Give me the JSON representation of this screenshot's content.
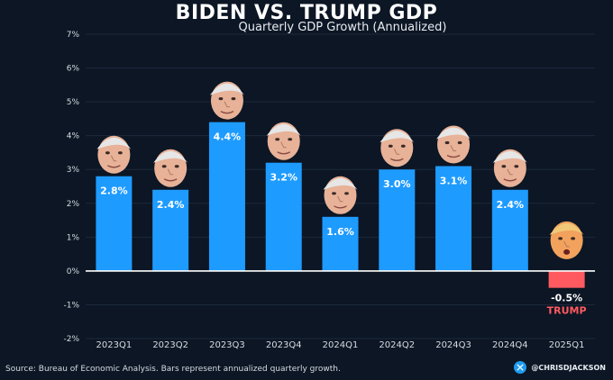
{
  "colors": {
    "background": "#0c1624",
    "positive_bar": "#1e9bff",
    "negative_bar": "#ff5a5f",
    "grid": "#1c2a3c",
    "axis_text": "#d6dbe3",
    "trump_label": "#ff5a5f"
  },
  "chart_data": {
    "type": "bar",
    "title": "BIDEN VS. TRUMP GDP",
    "subtitle": "Quarterly GDP Growth (Annualized)",
    "categories": [
      "2023Q1",
      "2023Q2",
      "2023Q3",
      "2023Q4",
      "2024Q1",
      "2024Q2",
      "2024Q3",
      "2024Q4",
      "2025Q1"
    ],
    "values": [
      2.8,
      2.4,
      4.4,
      3.2,
      1.6,
      3.0,
      3.1,
      2.4,
      -0.5
    ],
    "data_labels": [
      "2.8%",
      "2.4%",
      "4.4%",
      "3.2%",
      "1.6%",
      "3.0%",
      "3.1%",
      "2.4%",
      "-0.5%"
    ],
    "president": [
      "Biden",
      "Biden",
      "Biden",
      "Biden",
      "Biden",
      "Biden",
      "Biden",
      "Biden",
      "Trump"
    ],
    "annotation": "TRUMP",
    "ylim": [
      -2,
      7
    ],
    "yticks": [
      -2,
      -1,
      0,
      1,
      2,
      3,
      4,
      5,
      6,
      7
    ],
    "ytick_labels": [
      "-2%",
      "-1%",
      "0%",
      "1%",
      "2%",
      "3%",
      "4%",
      "5%",
      "6%",
      "7%"
    ],
    "grid": true,
    "xlabel": "",
    "ylabel": ""
  },
  "footer": {
    "source": "Source: Bureau of Economic Analysis. Bars represent annualized quarterly growth.",
    "handle": "@CHRISDJACKSON"
  },
  "icons": {
    "handle_icon": "x-logo-icon",
    "face_icon": "face-icon"
  }
}
